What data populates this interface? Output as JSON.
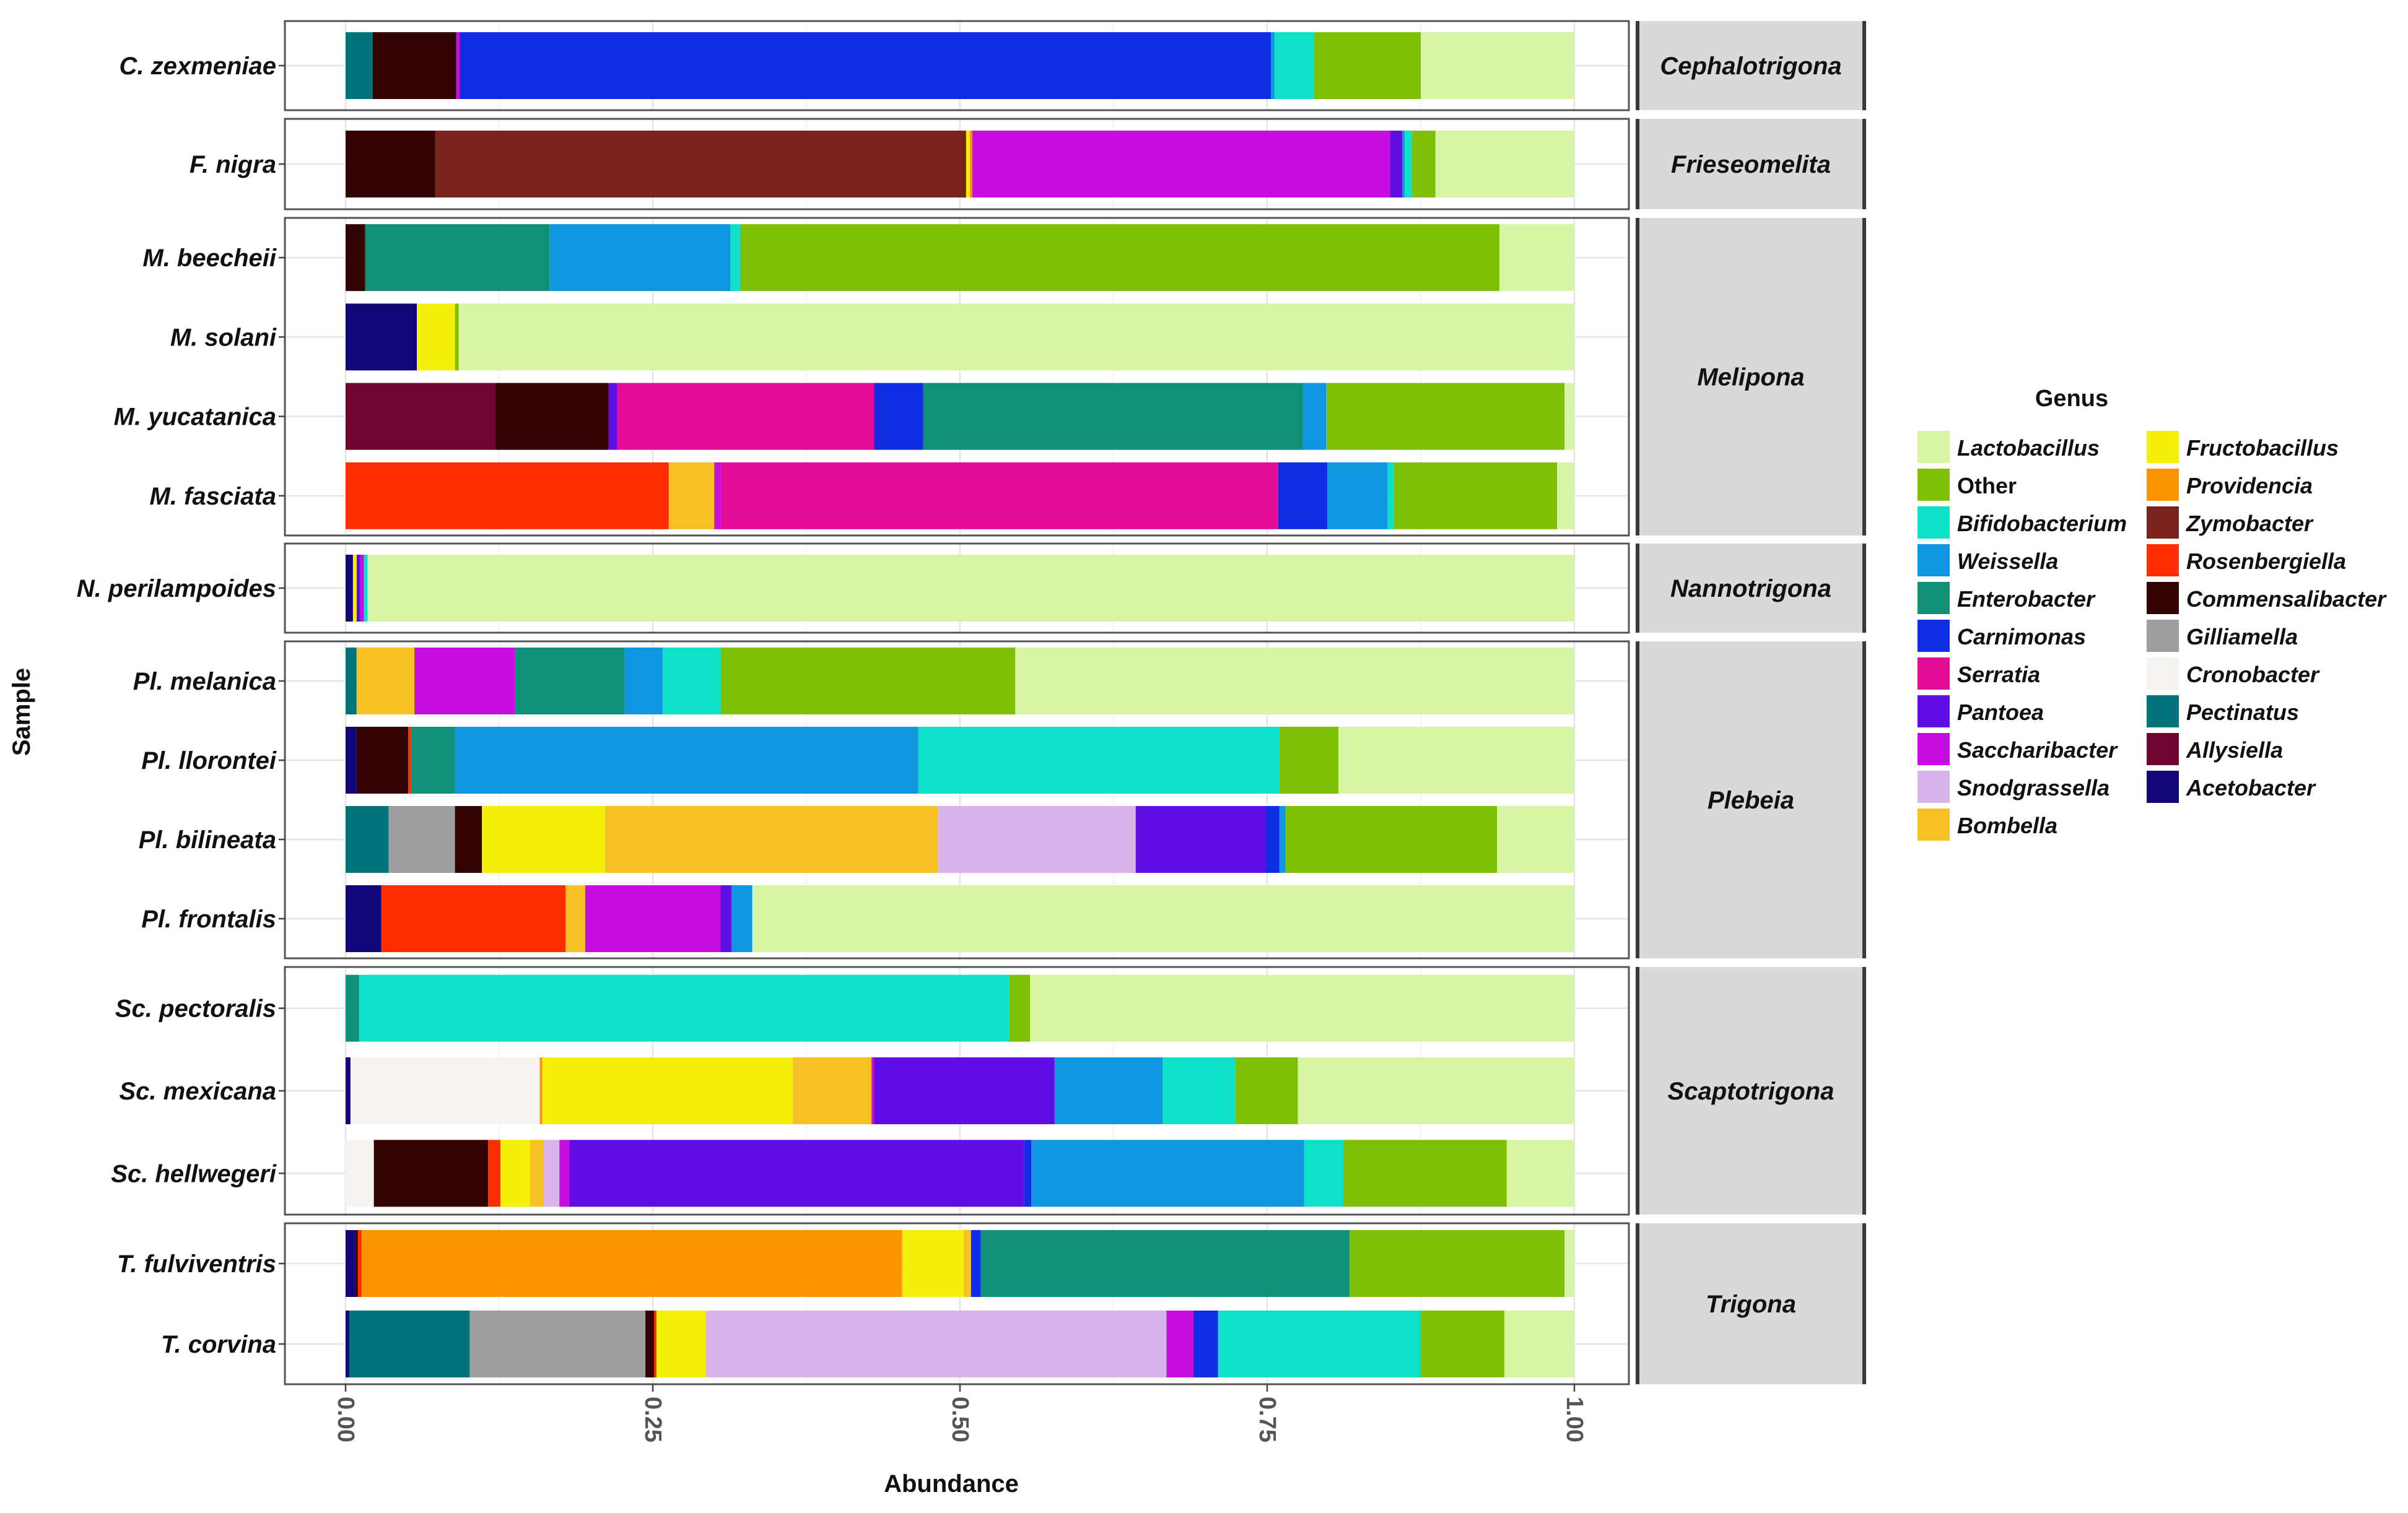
{
  "chart_data": {
    "type": "bar",
    "orientation": "horizontal",
    "stacked": true,
    "xlabel": "Abundance",
    "ylabel": "Sample",
    "xlim": [
      0,
      1
    ],
    "xticks": [
      "0.00",
      "0.25",
      "0.50",
      "0.75",
      "1.00"
    ],
    "legend": {
      "title": "Genus",
      "placement": "right"
    },
    "genera": [
      {
        "name": "Lactobacillus",
        "color": "#d8f5a6"
      },
      {
        "name": "Other",
        "color": "#7fbf05"
      },
      {
        "name": "Bifidobacterium",
        "color": "#0fe0c8"
      },
      {
        "name": "Weissella",
        "color": "#0e96e0"
      },
      {
        "name": "Enterobacter",
        "color": "#119077"
      },
      {
        "name": "Carnimonas",
        "color": "#0f2ee2"
      },
      {
        "name": "Serratia",
        "color": "#e20c96"
      },
      {
        "name": "Pantoea",
        "color": "#5f0ee3"
      },
      {
        "name": "Saccharibacter",
        "color": "#c60ee0"
      },
      {
        "name": "Snodgrassella",
        "color": "#d8b4ea"
      },
      {
        "name": "Bombella",
        "color": "#f5c124"
      },
      {
        "name": "Fructobacillus",
        "color": "#f5f00a"
      },
      {
        "name": "Providencia",
        "color": "#fb9400"
      },
      {
        "name": "Zymobacter",
        "color": "#7a231c"
      },
      {
        "name": "Rosenbergiella",
        "color": "#fc2d00"
      },
      {
        "name": "Commensalibacter",
        "color": "#330202"
      },
      {
        "name": "Gilliamella",
        "color": "#9e9e9e"
      },
      {
        "name": "Cronobacter",
        "color": "#f5f4f1"
      },
      {
        "name": "Pectinatus",
        "color": "#01737b"
      },
      {
        "name": "Allysiella",
        "color": "#6e0430"
      },
      {
        "name": "Acetobacter",
        "color": "#120778"
      }
    ],
    "panels": [
      {
        "genus_group": "Cephalotrigona",
        "samples": [
          {
            "name": "C. zexmeniae",
            "segments": [
              [
                "Pectinatus",
                0.022
              ],
              [
                "Commensalibacter",
                0.068
              ],
              [
                "Saccharibacter",
                0.003
              ],
              [
                "Carnimonas",
                0.66
              ],
              [
                "Weissella",
                0.003
              ],
              [
                "Bifidobacterium",
                0.032
              ],
              [
                "Other",
                0.087
              ],
              [
                "Lactobacillus",
                0.125
              ]
            ]
          }
        ]
      },
      {
        "genus_group": "Frieseomelita",
        "samples": [
          {
            "name": "F. nigra",
            "segments": [
              [
                "Commensalibacter",
                0.073
              ],
              [
                "Zymobacter",
                0.432
              ],
              [
                "Fructobacillus",
                0.003
              ],
              [
                "Providencia",
                0.002
              ],
              [
                "Saccharibacter",
                0.34
              ],
              [
                "Pantoea",
                0.01
              ],
              [
                "Weissella",
                0.002
              ],
              [
                "Bifidobacterium",
                0.006
              ],
              [
                "Other",
                0.019
              ],
              [
                "Lactobacillus",
                0.113
              ]
            ]
          }
        ]
      },
      {
        "genus_group": "Melipona",
        "samples": [
          {
            "name": "M. beecheii",
            "segments": [
              [
                "Commensalibacter",
                0.016
              ],
              [
                "Enterobacter",
                0.15
              ],
              [
                "Weissella",
                0.147
              ],
              [
                "Bifidobacterium",
                0.008
              ],
              [
                "Other",
                0.618
              ],
              [
                "Lactobacillus",
                0.061
              ]
            ]
          },
          {
            "name": "M. solani",
            "segments": [
              [
                "Acetobacter",
                0.058
              ],
              [
                "Fructobacillus",
                0.031
              ],
              [
                "Other",
                0.003
              ],
              [
                "Lactobacillus",
                0.908
              ]
            ]
          },
          {
            "name": "M. yucatanica",
            "segments": [
              [
                "Allysiella",
                0.122
              ],
              [
                "Commensalibacter",
                0.092
              ],
              [
                "Pantoea",
                0.007
              ],
              [
                "Serratia",
                0.209
              ],
              [
                "Carnimonas",
                0.04
              ],
              [
                "Enterobacter",
                0.309
              ],
              [
                "Weissella",
                0.019
              ],
              [
                "Other",
                0.194
              ],
              [
                "Lactobacillus",
                0.008
              ]
            ]
          },
          {
            "name": "M. fasciata",
            "segments": [
              [
                "Rosenbergiella",
                0.263
              ],
              [
                "Bombella",
                0.037
              ],
              [
                "Saccharibacter",
                0.005
              ],
              [
                "Serratia",
                0.454
              ],
              [
                "Carnimonas",
                0.04
              ],
              [
                "Weissella",
                0.049
              ],
              [
                "Bifidobacterium",
                0.005
              ],
              [
                "Other",
                0.133
              ],
              [
                "Lactobacillus",
                0.014
              ]
            ]
          }
        ]
      },
      {
        "genus_group": "Nannotrigona",
        "samples": [
          {
            "name": "N. perilampoides",
            "segments": [
              [
                "Acetobacter",
                0.006
              ],
              [
                "Fructobacillus",
                0.003
              ],
              [
                "Pantoea",
                0.003
              ],
              [
                "Saccharibacter",
                0.003
              ],
              [
                "Bifidobacterium",
                0.003
              ],
              [
                "Lactobacillus",
                0.982
              ]
            ]
          }
        ]
      },
      {
        "genus_group": "Plebeia",
        "samples": [
          {
            "name": "Pl. melanica",
            "segments": [
              [
                "Pectinatus",
                0.009
              ],
              [
                "Bombella",
                0.047
              ],
              [
                "Saccharibacter",
                0.082
              ],
              [
                "Enterobacter",
                0.089
              ],
              [
                "Weissella",
                0.031
              ],
              [
                "Bifidobacterium",
                0.047
              ],
              [
                "Other",
                0.24
              ],
              [
                "Lactobacillus",
                0.455
              ]
            ]
          },
          {
            "name": "Pl. llorontei",
            "segments": [
              [
                "Acetobacter",
                0.009
              ],
              [
                "Commensalibacter",
                0.042
              ],
              [
                "Rosenbergiella",
                0.002
              ],
              [
                "Enterobacter",
                0.036
              ],
              [
                "Weissella",
                0.377
              ],
              [
                "Bifidobacterium",
                0.294
              ],
              [
                "Other",
                0.048
              ],
              [
                "Lactobacillus",
                0.192
              ]
            ]
          },
          {
            "name": "Pl. bilineata",
            "segments": [
              [
                "Pectinatus",
                0.035
              ],
              [
                "Gilliamella",
                0.054
              ],
              [
                "Commensalibacter",
                0.022
              ],
              [
                "Fructobacillus",
                0.1
              ],
              [
                "Bombella",
                0.271
              ],
              [
                "Snodgrassella",
                0.161
              ],
              [
                "Pantoea",
                0.106
              ],
              [
                "Carnimonas",
                0.011
              ],
              [
                "Weissella",
                0.005
              ],
              [
                "Other",
                0.172
              ],
              [
                "Lactobacillus",
                0.063
              ]
            ]
          },
          {
            "name": "Pl. frontalis",
            "segments": [
              [
                "Acetobacter",
                0.029
              ],
              [
                "Rosenbergiella",
                0.15
              ],
              [
                "Bombella",
                0.016
              ],
              [
                "Saccharibacter",
                0.11
              ],
              [
                "Pantoea",
                0.009
              ],
              [
                "Weissella",
                0.017
              ],
              [
                "Lactobacillus",
                0.669
              ]
            ]
          }
        ]
      },
      {
        "genus_group": "Scaptotrigona",
        "samples": [
          {
            "name": "Sc. pectoralis",
            "segments": [
              [
                "Enterobacter",
                0.011
              ],
              [
                "Bifidobacterium",
                0.529
              ],
              [
                "Other",
                0.017
              ],
              [
                "Lactobacillus",
                0.443
              ]
            ]
          },
          {
            "name": "Sc. mexicana",
            "segments": [
              [
                "Acetobacter",
                0.004
              ],
              [
                "Cronobacter",
                0.154
              ],
              [
                "Providencia",
                0.002
              ],
              [
                "Fructobacillus",
                0.204
              ],
              [
                "Bombella",
                0.064
              ],
              [
                "Saccharibacter",
                0.002
              ],
              [
                "Pantoea",
                0.147
              ],
              [
                "Weissella",
                0.088
              ],
              [
                "Bifidobacterium",
                0.059
              ],
              [
                "Other",
                0.051
              ],
              [
                "Lactobacillus",
                0.225
              ]
            ]
          },
          {
            "name": "Sc. hellwegeri",
            "segments": [
              [
                "Cronobacter",
                0.023
              ],
              [
                "Commensalibacter",
                0.093
              ],
              [
                "Rosenbergiella",
                0.01
              ],
              [
                "Fructobacillus",
                0.024
              ],
              [
                "Bombella",
                0.011
              ],
              [
                "Snodgrassella",
                0.013
              ],
              [
                "Saccharibacter",
                0.008
              ],
              [
                "Pantoea",
                0.37
              ],
              [
                "Carnimonas",
                0.006
              ],
              [
                "Weissella",
                0.222
              ],
              [
                "Bifidobacterium",
                0.032
              ],
              [
                "Other",
                0.133
              ],
              [
                "Lactobacillus",
                0.055
              ]
            ]
          }
        ]
      },
      {
        "genus_group": "Trigona",
        "samples": [
          {
            "name": "T. fulviventris",
            "segments": [
              [
                "Acetobacter",
                0.008
              ],
              [
                "Commensalibacter",
                0.002
              ],
              [
                "Rosenbergiella",
                0.003
              ],
              [
                "Providencia",
                0.44
              ],
              [
                "Fructobacillus",
                0.05
              ],
              [
                "Bombella",
                0.006
              ],
              [
                "Carnimonas",
                0.008
              ],
              [
                "Enterobacter",
                0.3
              ],
              [
                "Other",
                0.175
              ],
              [
                "Lactobacillus",
                0.008
              ]
            ]
          },
          {
            "name": "T. corvina",
            "segments": [
              [
                "Acetobacter",
                0.003
              ],
              [
                "Pectinatus",
                0.098
              ],
              [
                "Gilliamella",
                0.143
              ],
              [
                "Commensalibacter",
                0.007
              ],
              [
                "Rosenbergiella",
                0.002
              ],
              [
                "Fructobacillus",
                0.04
              ],
              [
                "Snodgrassella",
                0.375
              ],
              [
                "Saccharibacter",
                0.022
              ],
              [
                "Carnimonas",
                0.02
              ],
              [
                "Bifidobacterium",
                0.165
              ],
              [
                "Other",
                0.068
              ],
              [
                "Lactobacillus",
                0.057
              ]
            ]
          }
        ]
      }
    ]
  }
}
